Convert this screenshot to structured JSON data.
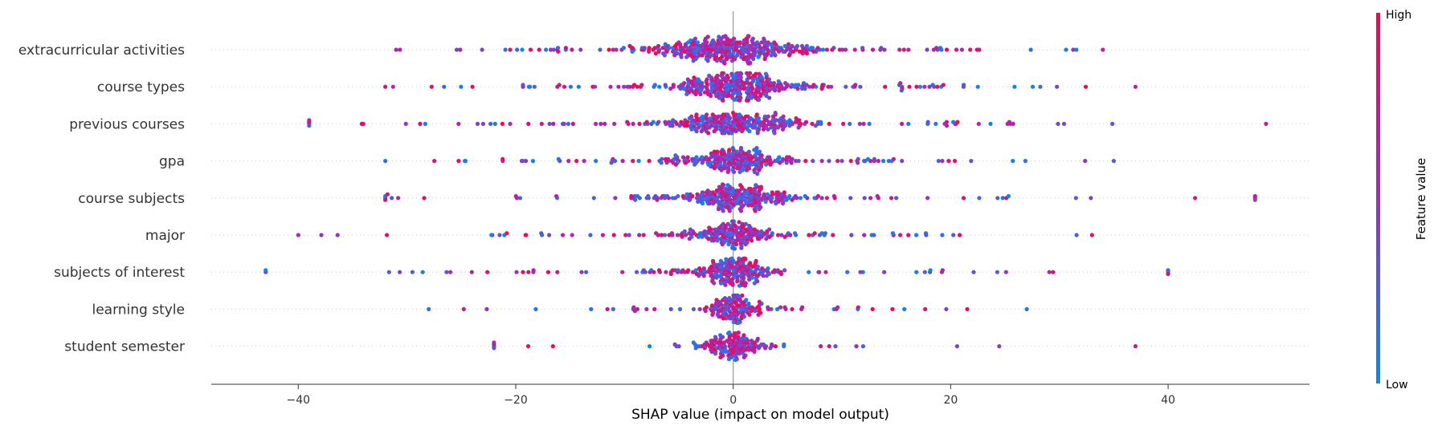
{
  "chart_data": {
    "type": "scatter",
    "subtype": "shap-beeswarm",
    "xlabel": "SHAP value (impact on model output)",
    "xlim": [
      -48,
      53
    ],
    "xticks": [
      -40,
      -20,
      0,
      20,
      40
    ],
    "xtick_labels": [
      "−40",
      "−20",
      "0",
      "20",
      "40"
    ],
    "grid": false,
    "zero_line": 0,
    "colorbar": {
      "title": "Feature value",
      "high_label": "High",
      "low_label": "Low",
      "low_color": "#008bfb",
      "mid_color": "#9b2fbf",
      "high_color": "#ff0052"
    },
    "features": [
      {
        "name": "extracurricular activities",
        "min": -31,
        "max": 34,
        "core": 4,
        "n": 420
      },
      {
        "name": "course types",
        "min": -32,
        "max": 37,
        "core": 3,
        "n": 380
      },
      {
        "name": "previous courses",
        "min": -39,
        "max": 49,
        "core": 3.5,
        "n": 330
      },
      {
        "name": "gpa",
        "min": -32,
        "max": 35,
        "core": 2.5,
        "n": 280
      },
      {
        "name": "course subjects",
        "min": -32,
        "max": 48,
        "core": 3,
        "n": 300
      },
      {
        "name": "major",
        "min": -40,
        "max": 33,
        "core": 2,
        "n": 240
      },
      {
        "name": "subjects of interest",
        "min": -43,
        "max": 40,
        "core": 1.8,
        "n": 260
      },
      {
        "name": "learning style",
        "min": -28,
        "max": 27,
        "core": 1.2,
        "n": 180
      },
      {
        "name": "student semester",
        "min": -22,
        "max": 37,
        "core": 1.5,
        "n": 170
      }
    ]
  }
}
